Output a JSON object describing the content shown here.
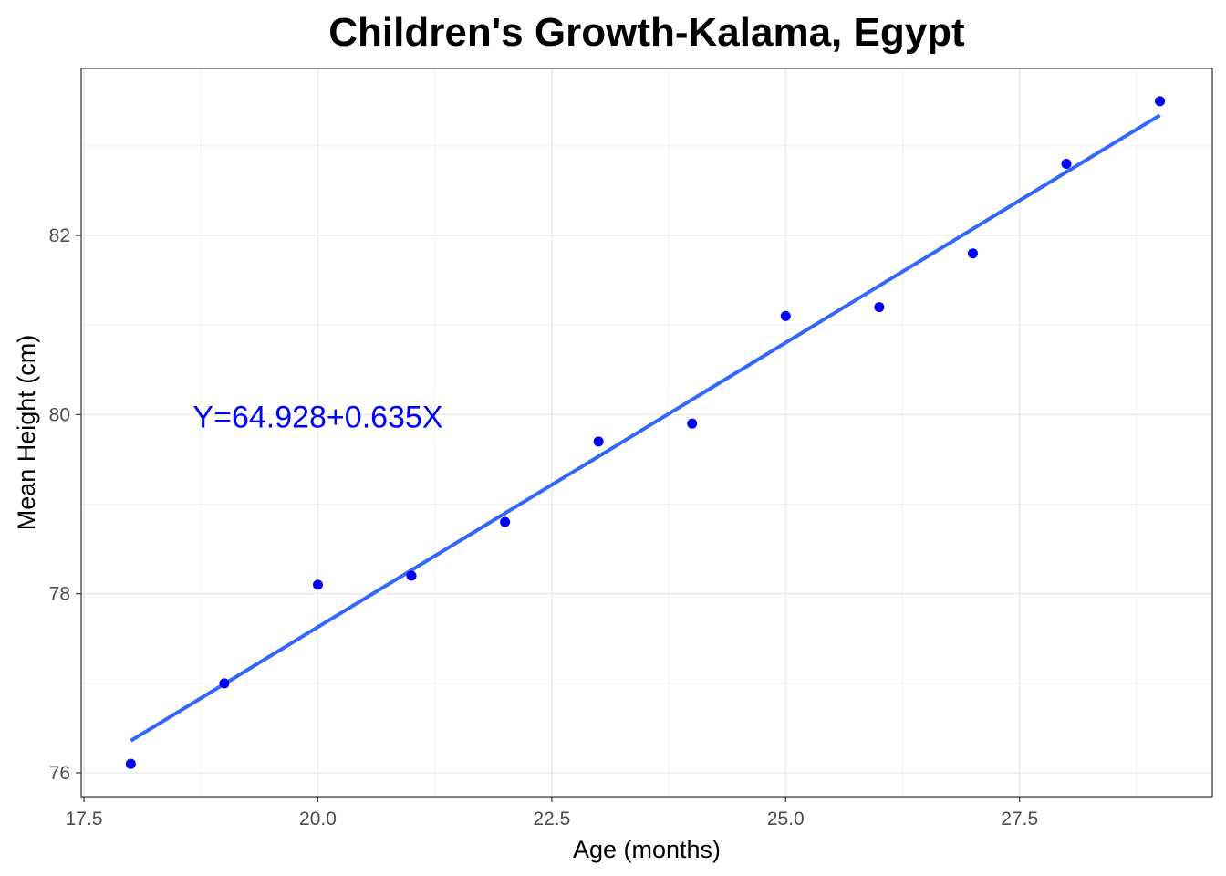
{
  "chart_data": {
    "type": "scatter",
    "title": "Children's Growth-Kalama, Egypt",
    "xlabel": "Age (months)",
    "ylabel": "Mean Height (cm)",
    "xlim": [
      17.47,
      29.56
    ],
    "ylim": [
      75.735,
      83.865
    ],
    "xticks": [
      17.5,
      20.0,
      22.5,
      25.0,
      27.5
    ],
    "xtick_labels": [
      "17.5",
      "20.0",
      "22.5",
      "25.0",
      "27.5"
    ],
    "yticks": [
      76,
      78,
      80,
      82
    ],
    "ytick_labels": [
      "76",
      "78",
      "80",
      "82"
    ],
    "grid": true,
    "x": [
      18,
      19,
      20,
      21,
      22,
      23,
      24,
      25,
      26,
      27,
      28,
      29
    ],
    "y": [
      76.1,
      77.0,
      78.1,
      78.2,
      78.8,
      79.7,
      79.9,
      81.1,
      81.2,
      81.8,
      82.8,
      83.5
    ],
    "fit": {
      "intercept": 64.928,
      "slope": 0.635,
      "x_range": [
        18,
        29
      ]
    },
    "annotation": {
      "text": "Y=64.928+0.635X",
      "x": 20.0,
      "y": 80
    },
    "colors": {
      "points": "#0000FF",
      "fit_line": "#3366FF",
      "annotation": "#0000FF"
    }
  }
}
